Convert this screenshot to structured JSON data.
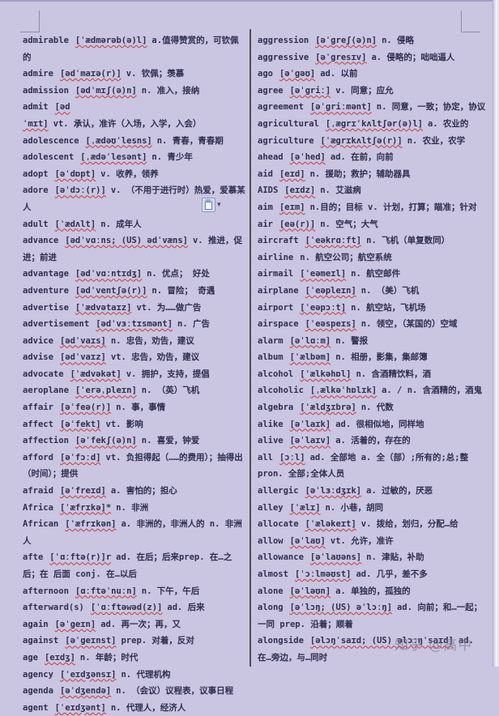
{
  "page": {
    "kind": "word-document-vocabulary-list",
    "background_color": "#cac5e1",
    "text_color": "#2f2f4f",
    "spellcheck_underline_color": "#c43a3a",
    "divider_color": "#4c4c58"
  },
  "watermark": {
    "text": "知乎 @高中"
  },
  "paste_button": {
    "dropdown_glyph": "▾"
  },
  "columns": [
    {
      "entries": [
        {
          "word": "admirable",
          "phon": "[ˈædmərəb(ə)l]",
          "rest": "a.值得赞赏的，可钦佩的"
        },
        {
          "word": "admire",
          "phon": "[ədˈmaɪə(r)]",
          "rest": "v. 钦佩；羡慕"
        },
        {
          "word": "admission",
          "phon": "[ədˈmɪʃ(ə)n]",
          "rest": "n. 准入，接纳"
        },
        {
          "word": "admit",
          "phon": "[ədˈmɪt]",
          "rest": "vt. 承认，准许（入场，入学，入会）"
        },
        {
          "word": "adolescence",
          "phon": "[ˌædəʊˈlesns]",
          "rest": "n. 青春，青春期"
        },
        {
          "word": "adolescent",
          "phon": "[ˌædəˈlesənt]",
          "rest": "n. 青少年"
        },
        {
          "word": "adopt",
          "phon": "[əˈdɒpt]",
          "rest": "v. 收养，领养"
        },
        {
          "word": "adore",
          "phon": "[əˈdɔː(r)]",
          "rest": "v. （不用于进行时）热爱，爱慕某人"
        },
        {
          "word": "adult",
          "phon": "[ˈædʌlt]",
          "rest": "n. 成年人"
        },
        {
          "word": "advance",
          "phon": "[ədˈvɑːns; (US) ədˈvæns]",
          "rest": "v. 推进，促进；前进"
        },
        {
          "word": "advantage",
          "phon": "[ədˈvɑːntɪdʒ]",
          "rest": "n. 优点； 好处"
        },
        {
          "word": "adventure",
          "phon": "[ədˈventʃə(r)]",
          "rest": "n. 冒险； 奇遇"
        },
        {
          "word": "advertise",
          "phon": "[ˈædvətaɪz]",
          "rest": "vt. 为……做广告"
        },
        {
          "word": "advertisement",
          "phon": "[ədˈvɜːtɪsmənt]",
          "rest": "n. 广告"
        },
        {
          "word": "advice",
          "phon": "[ədˈvaɪs]",
          "rest": "n. 忠告，劝告，建议"
        },
        {
          "word": "advise",
          "phon": "[ədˈvaɪz]",
          "rest": "vt. 忠告，劝告，建议"
        },
        {
          "word": "advocate",
          "phon": "[ˈædvəkət]",
          "rest": "v. 拥护，支持，提倡"
        },
        {
          "word": "aeroplane",
          "phon": "[ˈerəˌpleɪn]",
          "rest": "n. （英）飞机"
        },
        {
          "word": "affair",
          "phon": "[əˈfeə(r)]",
          "rest": "n. 事，事情"
        },
        {
          "word": "affect",
          "phon": "[əˈfekt]",
          "rest": "vt. 影响"
        },
        {
          "word": "affection",
          "phon": "[əˈfekʃ(ə)n]",
          "rest": "n. 喜爱，钟爱"
        },
        {
          "word": "afford",
          "phon": "[əˈfɔːd]",
          "rest": "vt. 负担得起（……的费用）；抽得出（时间）；提供"
        },
        {
          "word": "afraid",
          "phon": "[əˈfreɪd]",
          "rest": "a. 害怕的；担心"
        },
        {
          "word": "Africa",
          "phon": "[ˈæfrɪkə]*",
          "rest": "n. 非洲"
        },
        {
          "word": "African",
          "phon": "[ˈæfrɪkən]",
          "rest": "a. 非洲的，非洲人的 n. 非洲人"
        },
        {
          "word": "afte",
          "phon": "[ˈɑːftə(r)]r",
          "rest": "ad. 在后；后来prep. 在…之后；在 后面 conj. 在…以后"
        },
        {
          "word": "afternoon",
          "phon": "[ɑːftəˈnuːn]",
          "rest": "n. 下午，午后"
        },
        {
          "word": "afterward(s)",
          "phon": "[ˈɑːftəwəd(z)]",
          "rest": "ad. 后来"
        },
        {
          "word": "again",
          "phon": "[əˈgeɪn]",
          "rest": "ad. 再一次；再，又"
        },
        {
          "word": "against",
          "phon": "[əˈgeɪnst]",
          "rest": "prep. 对着，反对"
        },
        {
          "word": "age",
          "phon": "[eɪdʒ]",
          "rest": "n. 年龄；时代"
        },
        {
          "word": "agency",
          "phon": "[ˈeɪdʒənsɪ]",
          "rest": "n. 代理机构"
        },
        {
          "word": "agenda",
          "phon": "[əˈdʒendə]",
          "rest": "n. （会议）议程表，议事日程"
        },
        {
          "word": "agent",
          "phon": "[ˈeɪdʒənt]",
          "rest": "n. 代理人，经济人"
        }
      ]
    },
    {
      "entries": [
        {
          "word": "aggression",
          "phon": "[əˈgreʃ(ə)n]",
          "rest": "n. 侵略"
        },
        {
          "word": "aggressive",
          "phon": "[əˈgresɪv]",
          "rest": "a. 侵略的；咄咄逼人"
        },
        {
          "word": "ago",
          "phon": "[əˈgəʊ]",
          "rest": "ad. 以前"
        },
        {
          "word": "agree",
          "phon": "[əˈgriː]",
          "rest": "v. 同意；应允"
        },
        {
          "word": "agreement",
          "phon": "[əˈgriːmənt]",
          "rest": "n. 同意，一致；协定，协议"
        },
        {
          "word": "agricultural",
          "phon": "[ˌægrɪˈkʌltʃər(ə)l]",
          "rest": "a. 农业的"
        },
        {
          "word": "agriculture",
          "phon": "[ˈægrɪkʌltʃə(r)]",
          "rest": "n. 农业，农学"
        },
        {
          "word": "ahead",
          "phon": "[əˈhed]",
          "rest": "ad. 在前，向前"
        },
        {
          "word": "aid",
          "phon": "[eɪd]",
          "rest": "n. 援助；救护；辅助器具"
        },
        {
          "word": "AIDS",
          "phon": "[eɪdz]",
          "rest": "n. 艾滋病"
        },
        {
          "word": "aim",
          "phon": "[eɪm]",
          "rest": "n.目的；目标 v. 计划，打算；瞄准；针对"
        },
        {
          "word": "air",
          "phon": "[eə(r)]",
          "rest": "n. 空气；大气"
        },
        {
          "word": "aircraft",
          "phon": "[ˈeəkrɑːft]",
          "rest": "n. 飞机（单复数同）"
        },
        {
          "word": "airline",
          "phon": "",
          "rest": "n. 航空公司；航空系统"
        },
        {
          "word": "airmail",
          "phon": "[ˈeəmeɪl]",
          "rest": "n. 航空邮件"
        },
        {
          "word": "airplane",
          "phon": "[ˈeəpleɪn]",
          "rest": "n. （美）飞机"
        },
        {
          "word": "airport",
          "phon": "[ˈeəpɔːt]",
          "rest": "n. 航空站，飞机场"
        },
        {
          "word": "airspace",
          "phon": "[ˈeəspeɪs]",
          "rest": "n. 领空，（某国的）空域"
        },
        {
          "word": "alarm",
          "phon": "[əˈlɑːm]",
          "rest": "n. 警报"
        },
        {
          "word": "album",
          "phon": "[ˈælbəm]",
          "rest": "n. 相册，影集，集邮簿"
        },
        {
          "word": "alcohol",
          "phon": "[ˈælkəhɒl]",
          "rest": "n. 含酒精饮料，酒"
        },
        {
          "word": "alcoholic",
          "phon": "[ˌælkəˈhɒlɪk]",
          "rest": "a. / n. 含酒精的，酒鬼"
        },
        {
          "word": "algebra",
          "phon": "[ˈældʒɪbrə]",
          "rest": "n. 代数"
        },
        {
          "word": "alike",
          "phon": "[əˈlaɪk]",
          "rest": "ad. 很相似地，同样地"
        },
        {
          "word": "alive",
          "phon": "[əˈlaɪv]",
          "rest": "a. 活着的，存在的"
        },
        {
          "word": "all",
          "phon": "[ɔːl]",
          "rest": "ad. 全部地 a. 全（部）;所有的;总;整 pron. 全部;全体人员"
        },
        {
          "word": "allergic",
          "phon": "[əˈlɜːdʒɪk]",
          "rest": "a. 过敏的，厌恶"
        },
        {
          "word": "alley",
          "phon": "[ˈælɪ]",
          "rest": "n. 小巷，胡同"
        },
        {
          "word": "allocate",
          "phon": "[ˈæləkeɪt]",
          "rest": "v. 拨给，划归，分配…给"
        },
        {
          "word": "allow",
          "phon": "[əˈlaʊ]",
          "rest": "vt. 允许，准许"
        },
        {
          "word": "allowance",
          "phon": "[əˈlaʊəns]",
          "rest": "n. 津贴，补助"
        },
        {
          "word": "almost",
          "phon": "[ˈɔːlməʊst]",
          "rest": "ad. 几乎，差不多"
        },
        {
          "word": "alone",
          "phon": "[əˈləʊn]",
          "rest": "a. 单独的，孤独的"
        },
        {
          "word": "along",
          "phon": "[əˈlɔŋ; (US) əˈlɔːŋ]",
          "rest": "ad. 向前；和…一起；一同 prep. 沿着；顺着"
        },
        {
          "word": "alongside",
          "phon": "[əlɔŋˈsaɪd; (US) əlɔːŋˈsaɪd]",
          "rest": "ad. 在…旁边，与…同时"
        }
      ]
    }
  ]
}
